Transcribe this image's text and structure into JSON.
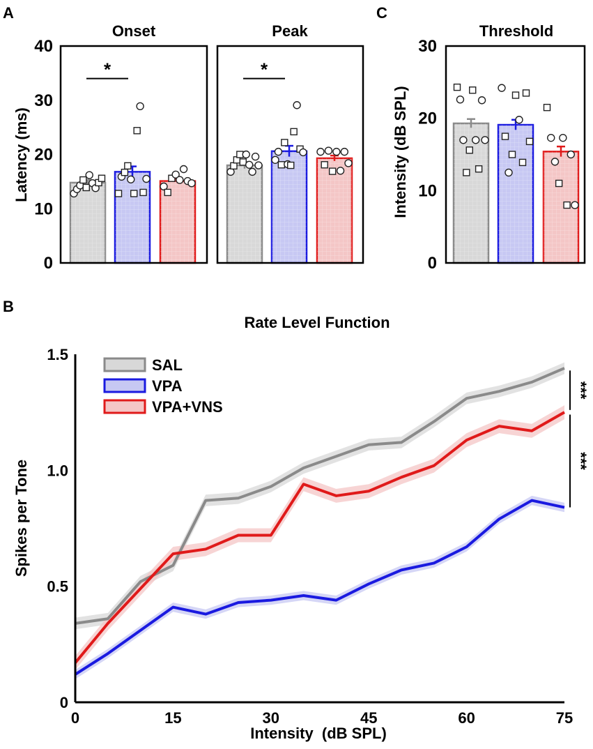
{
  "colors": {
    "sal": "#8a8a8a",
    "vpa": "#1a1ae0",
    "vns": "#e01a1a",
    "sal_fill": "#d8d8d8",
    "vpa_fill": "#c7c8f3",
    "vns_fill": "#f4c6c6"
  },
  "chart_data": [
    {
      "panel": "A",
      "type": "bar",
      "title": "Onset",
      "ylabel": "Latency (ms)",
      "ylim": [
        0,
        40
      ],
      "yticks": [
        "0",
        "10",
        "20",
        "30",
        "40"
      ],
      "categories": [
        "SAL",
        "VPA",
        "VPA+VNS"
      ],
      "values": [
        14.8,
        16.8,
        15.1
      ],
      "sem": [
        0.5,
        1.0,
        0.4
      ],
      "significance": {
        "pair": [
          "SAL",
          "VPA"
        ],
        "label": "*"
      },
      "points": [
        [
          [
            12.8,
            "c"
          ],
          [
            13.6,
            "c"
          ],
          [
            14.3,
            "c"
          ],
          [
            15.3,
            "s"
          ],
          [
            13.9,
            "s"
          ],
          [
            16.2,
            "c"
          ],
          [
            14.7,
            "c"
          ],
          [
            13.8,
            "c"
          ],
          [
            14.8,
            "s"
          ],
          [
            15.6,
            "s"
          ]
        ],
        [
          [
            12.8,
            "s"
          ],
          [
            15.9,
            "c"
          ],
          [
            16.7,
            "s"
          ],
          [
            17.9,
            "s"
          ],
          [
            15.4,
            "c"
          ],
          [
            12.8,
            "s"
          ],
          [
            24.4,
            "s"
          ],
          [
            28.9,
            "c"
          ],
          [
            13.0,
            "s"
          ],
          [
            15.5,
            "c"
          ]
        ],
        [
          [
            14.1,
            "c"
          ],
          [
            13.0,
            "s"
          ],
          [
            15.6,
            "s"
          ],
          [
            16.3,
            "c"
          ],
          [
            15.3,
            "c"
          ],
          [
            17.3,
            "c"
          ],
          [
            15.1,
            "c"
          ],
          [
            14.7,
            "c"
          ]
        ]
      ]
    },
    {
      "panel": "A",
      "type": "bar",
      "title": "Peak",
      "ylim": [
        0,
        40
      ],
      "categories": [
        "SAL",
        "VPA",
        "VPA+VNS"
      ],
      "values": [
        18.0,
        20.6,
        19.3
      ],
      "sem": [
        0.6,
        1.0,
        0.5
      ],
      "significance": {
        "pair": [
          "SAL",
          "VPA"
        ],
        "label": "*"
      },
      "points": [
        [
          [
            16.8,
            "c"
          ],
          [
            17.9,
            "s"
          ],
          [
            19.0,
            "s"
          ],
          [
            20.0,
            "s"
          ],
          [
            18.6,
            "s"
          ],
          [
            20.0,
            "c"
          ],
          [
            18.1,
            "c"
          ],
          [
            16.8,
            "c"
          ],
          [
            19.6,
            "c"
          ],
          [
            18.0,
            "c"
          ]
        ],
        [
          [
            19.0,
            "c"
          ],
          [
            20.5,
            "c"
          ],
          [
            18.1,
            "s"
          ],
          [
            22.2,
            "s"
          ],
          [
            18.2,
            "c"
          ],
          [
            18.0,
            "s"
          ],
          [
            24.2,
            "s"
          ],
          [
            29.1,
            "c"
          ],
          [
            21.0,
            "s"
          ],
          [
            20.4,
            "c"
          ]
        ],
        [
          [
            20.5,
            "c"
          ],
          [
            18.1,
            "s"
          ],
          [
            20.7,
            "c"
          ],
          [
            16.9,
            "s"
          ],
          [
            20.5,
            "c"
          ],
          [
            17.0,
            "c"
          ],
          [
            20.5,
            "c"
          ],
          [
            18.4,
            "c"
          ]
        ]
      ]
    },
    {
      "panel": "C",
      "type": "bar",
      "title": "Threshold",
      "ylabel": "Intensity (dB SPL)",
      "ylim": [
        0,
        30
      ],
      "yticks": [
        "0",
        "10",
        "20",
        "30"
      ],
      "categories": [
        "SAL",
        "VPA",
        "VPA+VNS"
      ],
      "values": [
        19.3,
        19.1,
        15.4
      ],
      "sem": [
        0.6,
        0.7,
        0.7
      ],
      "points": [
        [
          [
            24.3,
            "s"
          ],
          [
            22.6,
            "c"
          ],
          [
            17.0,
            "c"
          ],
          [
            12.5,
            "s"
          ],
          [
            15.6,
            "s"
          ],
          [
            23.9,
            "s"
          ],
          [
            17.0,
            "c"
          ],
          [
            13.0,
            "s"
          ],
          [
            22.5,
            "c"
          ],
          [
            17.0,
            "c"
          ]
        ],
        [
          [
            24.2,
            "c"
          ],
          [
            17.5,
            "s"
          ],
          [
            12.5,
            "c"
          ],
          [
            15.0,
            "s"
          ],
          [
            23.2,
            "s"
          ],
          [
            19.8,
            "c"
          ],
          [
            13.9,
            "s"
          ],
          [
            23.5,
            "s"
          ],
          [
            16.8,
            "s"
          ]
        ],
        [
          [
            21.5,
            "s"
          ],
          [
            17.3,
            "c"
          ],
          [
            14.0,
            "c"
          ],
          [
            11.0,
            "s"
          ],
          [
            17.3,
            "c"
          ],
          [
            8.0,
            "s"
          ],
          [
            15.0,
            "c"
          ],
          [
            8.0,
            "c"
          ]
        ]
      ]
    },
    {
      "panel": "B",
      "type": "line",
      "title": "Rate Level Function",
      "xlabel": "Intensity  (dB SPL)",
      "ylabel": "Spikes per Tone",
      "xlim": [
        0,
        75
      ],
      "ylim": [
        0,
        1.5
      ],
      "xticks": [
        "0",
        "15",
        "30",
        "45",
        "60",
        "75"
      ],
      "yticks": [
        "0",
        "0.5",
        "1.0",
        "1.5"
      ],
      "x": [
        0,
        5,
        10,
        15,
        20,
        25,
        30,
        35,
        40,
        45,
        50,
        55,
        60,
        65,
        70,
        75
      ],
      "series": [
        {
          "name": "SAL",
          "sem": 0.025,
          "values": [
            0.34,
            0.36,
            0.52,
            0.59,
            0.87,
            0.88,
            0.93,
            1.01,
            1.06,
            1.11,
            1.12,
            1.21,
            1.31,
            1.34,
            1.38,
            1.44
          ]
        },
        {
          "name": "VPA",
          "sem": 0.02,
          "values": [
            0.12,
            0.21,
            0.31,
            0.41,
            0.38,
            0.43,
            0.44,
            0.46,
            0.44,
            0.51,
            0.57,
            0.6,
            0.67,
            0.79,
            0.87,
            0.84
          ]
        },
        {
          "name": "VPA+VNS",
          "sem": 0.03,
          "values": [
            0.17,
            0.34,
            0.49,
            0.64,
            0.66,
            0.72,
            0.72,
            0.94,
            0.89,
            0.91,
            0.97,
            1.02,
            1.13,
            1.19,
            1.17,
            1.25
          ]
        }
      ],
      "legend": [
        "SAL",
        "VPA",
        "VPA+VNS"
      ],
      "significance": [
        "***",
        "***"
      ]
    }
  ],
  "panel_labels": {
    "a": "A",
    "b": "B",
    "c": "C"
  }
}
